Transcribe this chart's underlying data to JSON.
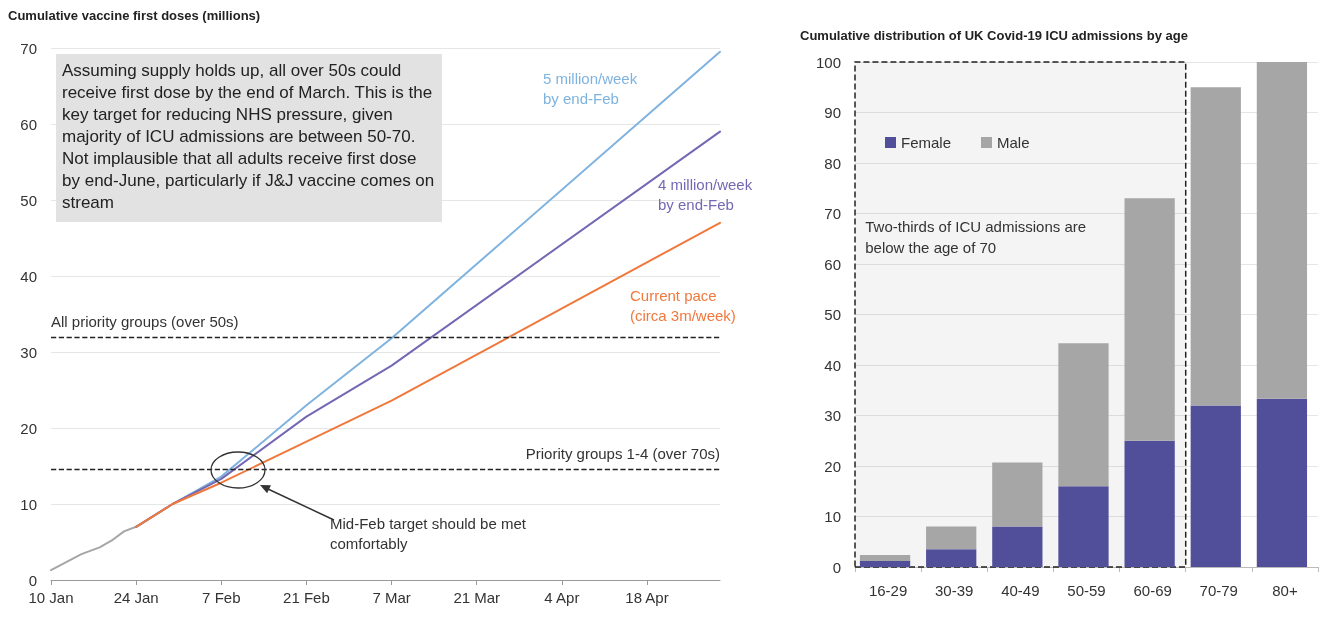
{
  "chart_data": [
    {
      "type": "line",
      "title": "Cumulative vaccine first doses (millions)",
      "xlim": [
        "--01-10",
        "--04-30"
      ],
      "xticks": [
        {
          "value": "--01-10",
          "label": "10 Jan"
        },
        {
          "value": "--01-24",
          "label": "24 Jan"
        },
        {
          "value": "--02-07",
          "label": "7 Feb"
        },
        {
          "value": "--02-21",
          "label": "21 Feb"
        },
        {
          "value": "--03-07",
          "label": "7 Mar"
        },
        {
          "value": "--03-21",
          "label": "21 Mar"
        },
        {
          "value": "--04-04",
          "label": "4 Apr"
        },
        {
          "value": "--04-18",
          "label": "18 Apr"
        }
      ],
      "ylim": [
        0,
        70
      ],
      "yticks": [
        0,
        10,
        20,
        30,
        40,
        50,
        60,
        70
      ],
      "grid": "y",
      "marker": "none",
      "line_style": "solid",
      "series": [
        {
          "color": "#a6a6a6",
          "x": [
            "--01-10",
            "--01-15",
            "--01-18",
            "--01-20",
            "--01-22",
            "--01-24"
          ],
          "values": [
            1.3,
            3.4,
            4.3,
            5.2,
            6.4,
            7
          ]
        },
        {
          "name": "5 million/week by end-Feb",
          "color": "#7fb3df",
          "x": [
            "--01-24",
            "--01-30",
            "--02-07",
            "--02-21",
            "--03-07",
            "--04-30"
          ],
          "values": [
            7,
            10,
            13.6,
            23,
            31.8,
            69.5
          ]
        },
        {
          "name": "4 million/week by end-Feb",
          "color": "#7468b4",
          "x": [
            "--01-24",
            "--01-30",
            "--02-07",
            "--02-21",
            "--03-07",
            "--04-30"
          ],
          "values": [
            7,
            10,
            13.3,
            21.5,
            28.2,
            59
          ]
        },
        {
          "name": "Current pace (circa 3m/week)",
          "color": "#f0783c",
          "x": [
            "--01-24",
            "--01-30",
            "--02-07",
            "--02-21",
            "--03-07",
            "--04-30"
          ],
          "values": [
            7,
            10,
            12.8,
            18.2,
            23.6,
            47
          ]
        }
      ],
      "ref_lines": [
        {
          "axis": "y",
          "value": 32,
          "label": "All priority groups (over 50s)",
          "color": "#222222",
          "line_style": "dashed"
        },
        {
          "axis": "y",
          "value": 14.6,
          "label": "Priority groups 1-4 (over 70s)",
          "color": "#222222",
          "line_style": "dashed"
        }
      ],
      "annotations": [
        "Assuming supply holds up, all over 50s could receive first dose by the end of March. This is the key target for reducing NHS pressure, given majority of ICU admissions are between 50-70. Not implausible that all adults receive first dose by end-June, particularly if J&J vaccine comes on stream",
        "Mid-Feb target should be met comfortably"
      ]
    },
    {
      "type": "bar",
      "stacked": true,
      "title": "Cumulative distribution of UK Covid-19 ICU admissions by age",
      "categories": [
        "16-29",
        "30-39",
        "40-49",
        "50-59",
        "60-69",
        "70-79",
        "80+"
      ],
      "ylim": [
        0,
        100
      ],
      "yticks": [
        0,
        10,
        20,
        30,
        40,
        50,
        60,
        70,
        80,
        90,
        100
      ],
      "grid": "y",
      "legend": "top left",
      "series": [
        {
          "name": "Female",
          "color": "#524f9a",
          "values": [
            1.2,
            3.5,
            8,
            16,
            25,
            32,
            33.3
          ]
        },
        {
          "name": "Male",
          "color": "#a6a6a6",
          "values": [
            1.2,
            4.5,
            12.7,
            28.3,
            48,
            63,
            66.7
          ]
        }
      ],
      "bands": [
        {
          "axis": "x",
          "from": "16-29",
          "to": "60-69",
          "label": "Two-thirds of ICU admissions are below the age of 70",
          "color": "#222222"
        }
      ]
    }
  ]
}
